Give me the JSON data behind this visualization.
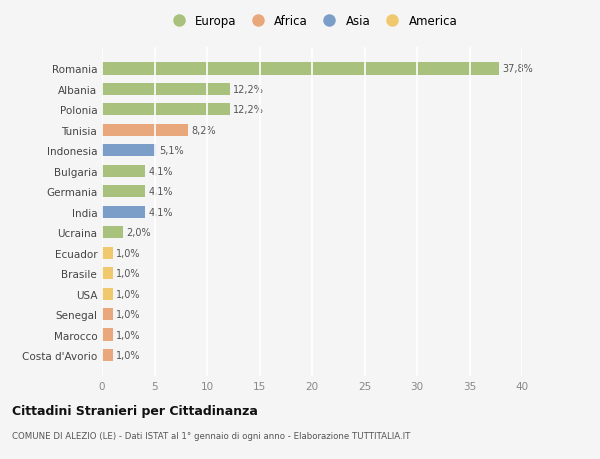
{
  "countries": [
    "Romania",
    "Albania",
    "Polonia",
    "Tunisia",
    "Indonesia",
    "Bulgaria",
    "Germania",
    "India",
    "Ucraina",
    "Ecuador",
    "Brasile",
    "USA",
    "Senegal",
    "Marocco",
    "Costa d'Avorio"
  ],
  "values": [
    37.8,
    12.2,
    12.2,
    8.2,
    5.1,
    4.1,
    4.1,
    4.1,
    2.0,
    1.0,
    1.0,
    1.0,
    1.0,
    1.0,
    1.0
  ],
  "labels": [
    "37,8%",
    "12,2%",
    "12,2%",
    "8,2%",
    "5,1%",
    "4,1%",
    "4,1%",
    "4,1%",
    "2,0%",
    "1,0%",
    "1,0%",
    "1,0%",
    "1,0%",
    "1,0%",
    "1,0%"
  ],
  "continents": [
    "Europa",
    "Europa",
    "Europa",
    "Africa",
    "Asia",
    "Europa",
    "Europa",
    "Asia",
    "Europa",
    "America",
    "America",
    "America",
    "Africa",
    "Africa",
    "Africa"
  ],
  "continent_colors": {
    "Europa": "#a8c17c",
    "Africa": "#e8a87c",
    "Asia": "#7b9ec8",
    "America": "#f0c96e"
  },
  "legend_order": [
    "Europa",
    "Africa",
    "Asia",
    "America"
  ],
  "title": "Cittadini Stranieri per Cittadinanza",
  "subtitle": "COMUNE DI ALEZIO (LE) - Dati ISTAT al 1° gennaio di ogni anno - Elaborazione TUTTITALIA.IT",
  "xlim": [
    0,
    40
  ],
  "xticks": [
    0,
    5,
    10,
    15,
    20,
    25,
    30,
    35,
    40
  ],
  "background_color": "#f5f5f5",
  "grid_color": "#ffffff",
  "bar_height": 0.6
}
